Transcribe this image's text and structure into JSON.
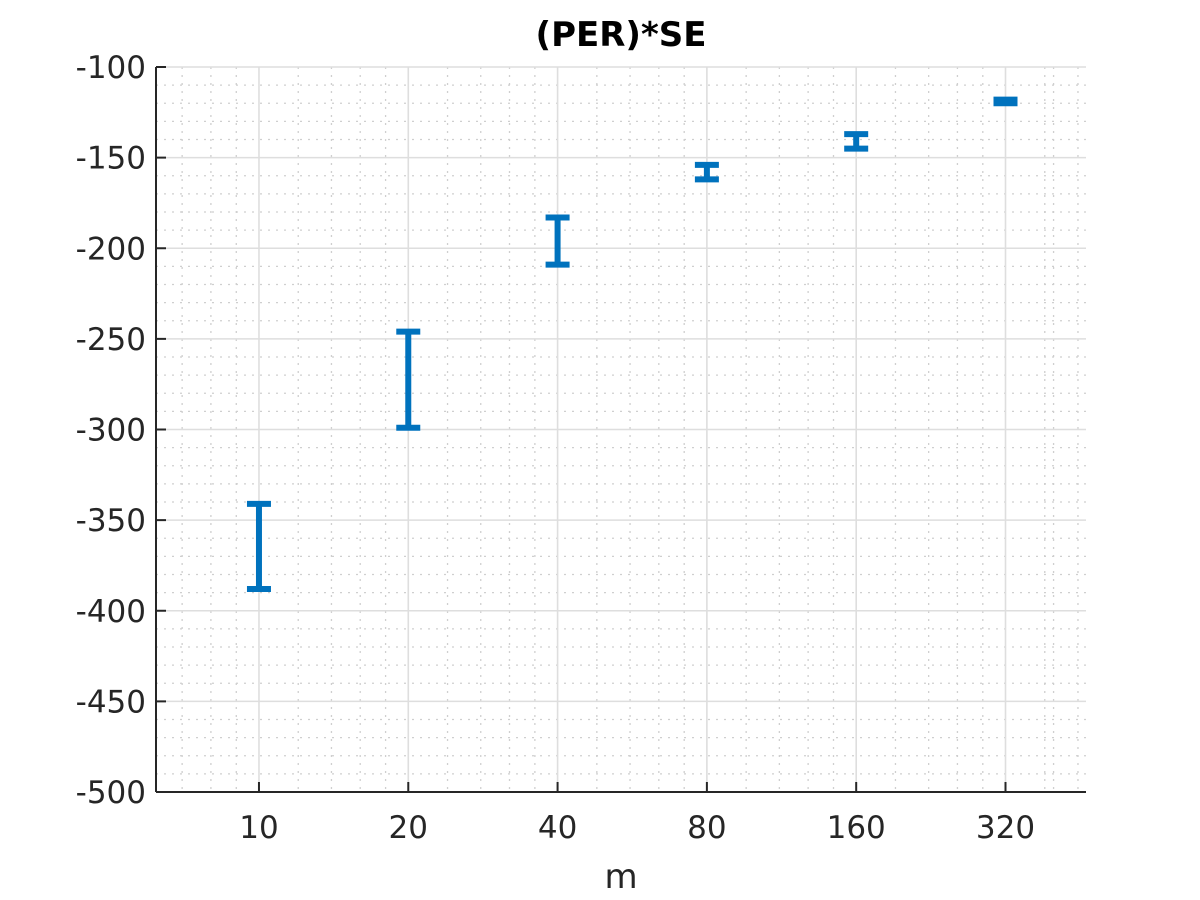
{
  "chart_data": {
    "type": "errorbar",
    "title": "(PER)*SE",
    "xlabel": "m",
    "ylabel": "",
    "x_scale": "log2",
    "x": [
      10,
      20,
      40,
      80,
      160,
      320
    ],
    "x_tick_labels": [
      "10",
      "20",
      "40",
      "80",
      "160",
      "320"
    ],
    "y_ticks": [
      -100,
      -150,
      -200,
      -250,
      -300,
      -350,
      -400,
      -450,
      -500
    ],
    "y_tick_labels": [
      "-100",
      "-150",
      "-200",
      "-250",
      "-300",
      "-350",
      "-400",
      "-450",
      "-500"
    ],
    "ylim": [
      -500,
      -100
    ],
    "xlim": [
      6.2,
      465
    ],
    "grid": true,
    "minor_grid": true,
    "series": [
      {
        "color": "#0072BD",
        "points": [
          {
            "x": 10,
            "low": -388,
            "high": -341
          },
          {
            "x": 20,
            "low": -299,
            "high": -246
          },
          {
            "x": 40,
            "low": -209,
            "high": -183
          },
          {
            "x": 80,
            "low": -162,
            "high": -154
          },
          {
            "x": 160,
            "low": -145,
            "high": -137
          },
          {
            "x": 320,
            "low": -120,
            "high": -118
          }
        ]
      }
    ]
  }
}
